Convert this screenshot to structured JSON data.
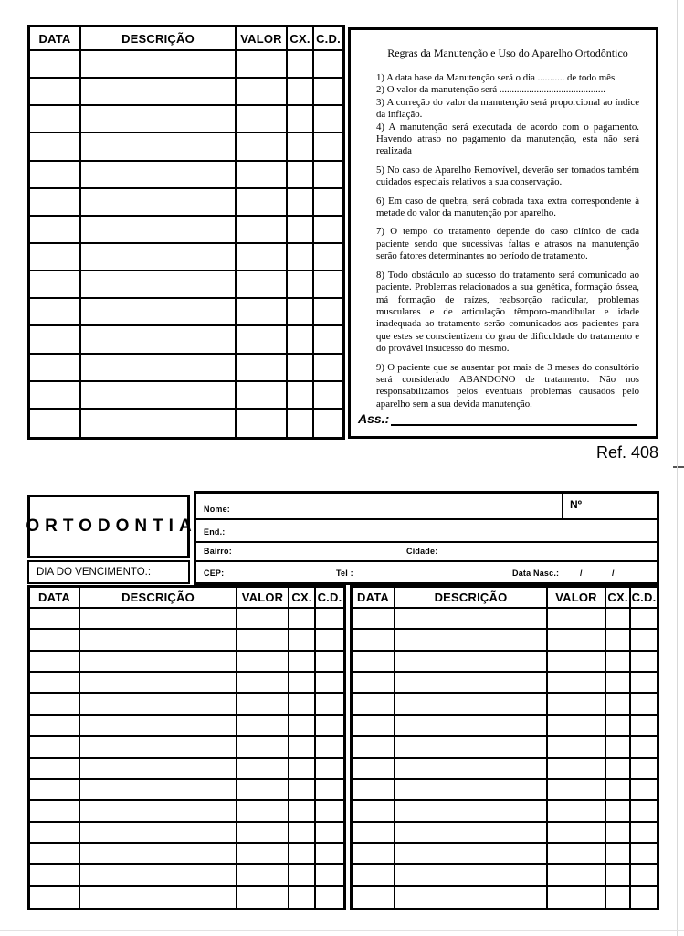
{
  "ref_label": "Ref. 408",
  "columns": [
    "DATA",
    "DESCRIÇÃO",
    "VALOR",
    "CX.",
    "C.D."
  ],
  "top_table": {
    "row_count": 14
  },
  "bottom_table": {
    "row_count": 14
  },
  "rules_panel": {
    "title": "Regras da Manutenção e Uso do Aparelho Ortodôntico",
    "rules": [
      "1) A data base da Manutenção será o dia ........... de todo mês.",
      "2) O valor da manutenção será ...........................................",
      "3) A correção do valor da manutenção  será  proporcional ao índice da inflação.",
      "4) A manutenção será executada de acordo com o pagamento. Havendo atraso no pagamento  da manutenção, esta não será realizada",
      "5) No caso de  Aparelho  Removível,  deverão ser tomados também cuidados especiais relativos a sua conservação.",
      "6) Em caso de quebra,  será  cobrada  taxa  extra  correspondente  à metade do valor da manutenção por aparelho.",
      "7) O tempo do tratamento depende do caso clínico de cada paciente sendo que sucessivas faltas e  atrasos  na manutenção serão  fatores determinantes no período de tratamento.",
      "8) Todo  obstáculo  ao  sucesso  do  tratamento será comunicado ao paciente.  Problemas  relacionados a  sua genética, formação óssea, má formação de raízes, reabsorção radicular, problemas musculares e de articulação  têmporo-mandibular  e  idade  inadequada ao tratamento serão comunicados aos pacientes para que estes se  conscientizem do grau de dificuldade do tratamento e do provável insucesso do mesmo.",
      "9)  O paciente que se ausentar por mais de 3 meses do consultório será considerado ABANDONO de tratamento. Não nos responsabilizamos pelos eventuais  problemas  causados pelo aparelho sem a sua devida manutenção."
    ],
    "signature_label": "Ass.:"
  },
  "card": {
    "brand": "ORTODONTIA",
    "due_label": "DIA DO VENCIMENTO.:",
    "nome_label": "Nome:",
    "numero_label": "Nº",
    "end_label": "End.:",
    "bairro_label": "Bairro:",
    "cidade_label": "Cidade:",
    "cep_label": "CEP:",
    "tel_label": "Tel :",
    "nasc_label": "Data Nasc.:",
    "slash": "/"
  }
}
